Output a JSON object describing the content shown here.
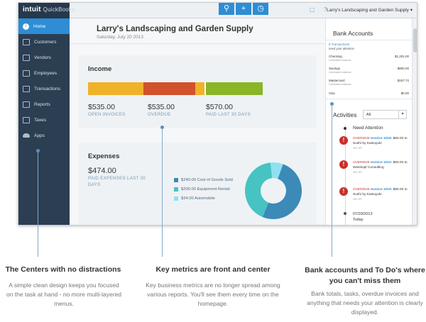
{
  "app": {
    "logo_brand": "intuit",
    "logo_product": "QuickBooks",
    "company_menu": "Larry's Landscaping and Garden Supply ▾",
    "toolbar": {
      "search_glyph": "⚲",
      "add_glyph": "+",
      "recent_glyph": "◷",
      "help_glyph": "?",
      "chat_glyph": "▢"
    }
  },
  "sidebar": {
    "items": [
      {
        "label": "Home",
        "icon": "home-icon",
        "active": true
      },
      {
        "label": "Customers",
        "icon": "customers-icon"
      },
      {
        "label": "Vendors",
        "icon": "vendors-icon"
      },
      {
        "label": "Employees",
        "icon": "employees-icon"
      },
      {
        "label": "Transactions",
        "icon": "transactions-icon"
      },
      {
        "label": "Reports",
        "icon": "reports-icon"
      },
      {
        "label": "Taxes",
        "icon": "taxes-icon"
      },
      {
        "label": "Apps",
        "icon": "apps-icon"
      }
    ]
  },
  "main": {
    "company_name": "Larry's Landscaping and Garden Supply",
    "date": "Saturday, July 20 2013",
    "income": {
      "title": "Income",
      "open_value": "$535.00",
      "open_label": "OPEN INVOICES",
      "overdue_value": "$535.00",
      "overdue_label": "OVERDUE",
      "paid_value": "$570.00",
      "paid_label": "PAID LAST 30 DAYS",
      "colors": {
        "open": "#f0b229",
        "overdue": "#d2522b",
        "paid": "#8ab524"
      }
    },
    "expenses": {
      "title": "Expenses",
      "total_value": "$474.00",
      "total_label": "PAID EXPENSES LAST 30 DAYS",
      "legend": [
        {
          "label": "$240.00 Cost of Goods Sold",
          "amount": 240,
          "color": "#3b8ab8"
        },
        {
          "label": "$200.00 Equipment Rental",
          "amount": 200,
          "color": "#46c3c2"
        },
        {
          "label": "$34.00 Automobile",
          "amount": 34,
          "color": "#8fe0f0"
        }
      ]
    }
  },
  "right_panel": {
    "bank_title": "Bank Accounts",
    "transactions_link": "8 Transactions",
    "transactions_sub": "need your attention",
    "accounts": [
      {
        "name": "Checking",
        "amount": "$1,201.00",
        "sub": "Uncleared balance"
      },
      {
        "name": "Savings",
        "amount": "$800.00",
        "sub": "Uncleared balance"
      },
      {
        "name": "Mastercard",
        "amount": "$157.72",
        "sub": "Uncleared balance"
      },
      {
        "name": "Visa",
        "amount": "$0.00",
        "sub": ""
      }
    ],
    "activities_title": "Activities",
    "activities_filter": "All",
    "need_attention": "Need Attention",
    "items": [
      {
        "status": "OVERDUE",
        "invoice": "Invoice 1018:",
        "text": "$60.00 to Sushi by Katsuyuki",
        "date": "Jun 20"
      },
      {
        "status": "OVERDUE",
        "invoice": "Invoice 1010:",
        "text": "$60.00 to Weiskopf Consulting",
        "date": "Jun 20"
      },
      {
        "status": "OVERDUE",
        "invoice": "Invoice 1019:",
        "text": "$80.00 to Sushi by Katsuyuki",
        "date": "Jun 20"
      }
    ],
    "today_date": "07/20/2013",
    "today_label": "Today"
  },
  "callouts": [
    {
      "title": "The Centers with no distractions",
      "body": "A simple clean design keeps you focused on the task at hand - no more multi-layered menus."
    },
    {
      "title": "Key metrics are front and center",
      "body": "Key business metrics are no longer spread among various reports. You'll see them every time on the homepage."
    },
    {
      "title": "Bank accounts and To Do's where you can't miss them",
      "body": "Bank totals, tasks, overdue invoices and anything that needs your attention is clearly displayed."
    }
  ]
}
